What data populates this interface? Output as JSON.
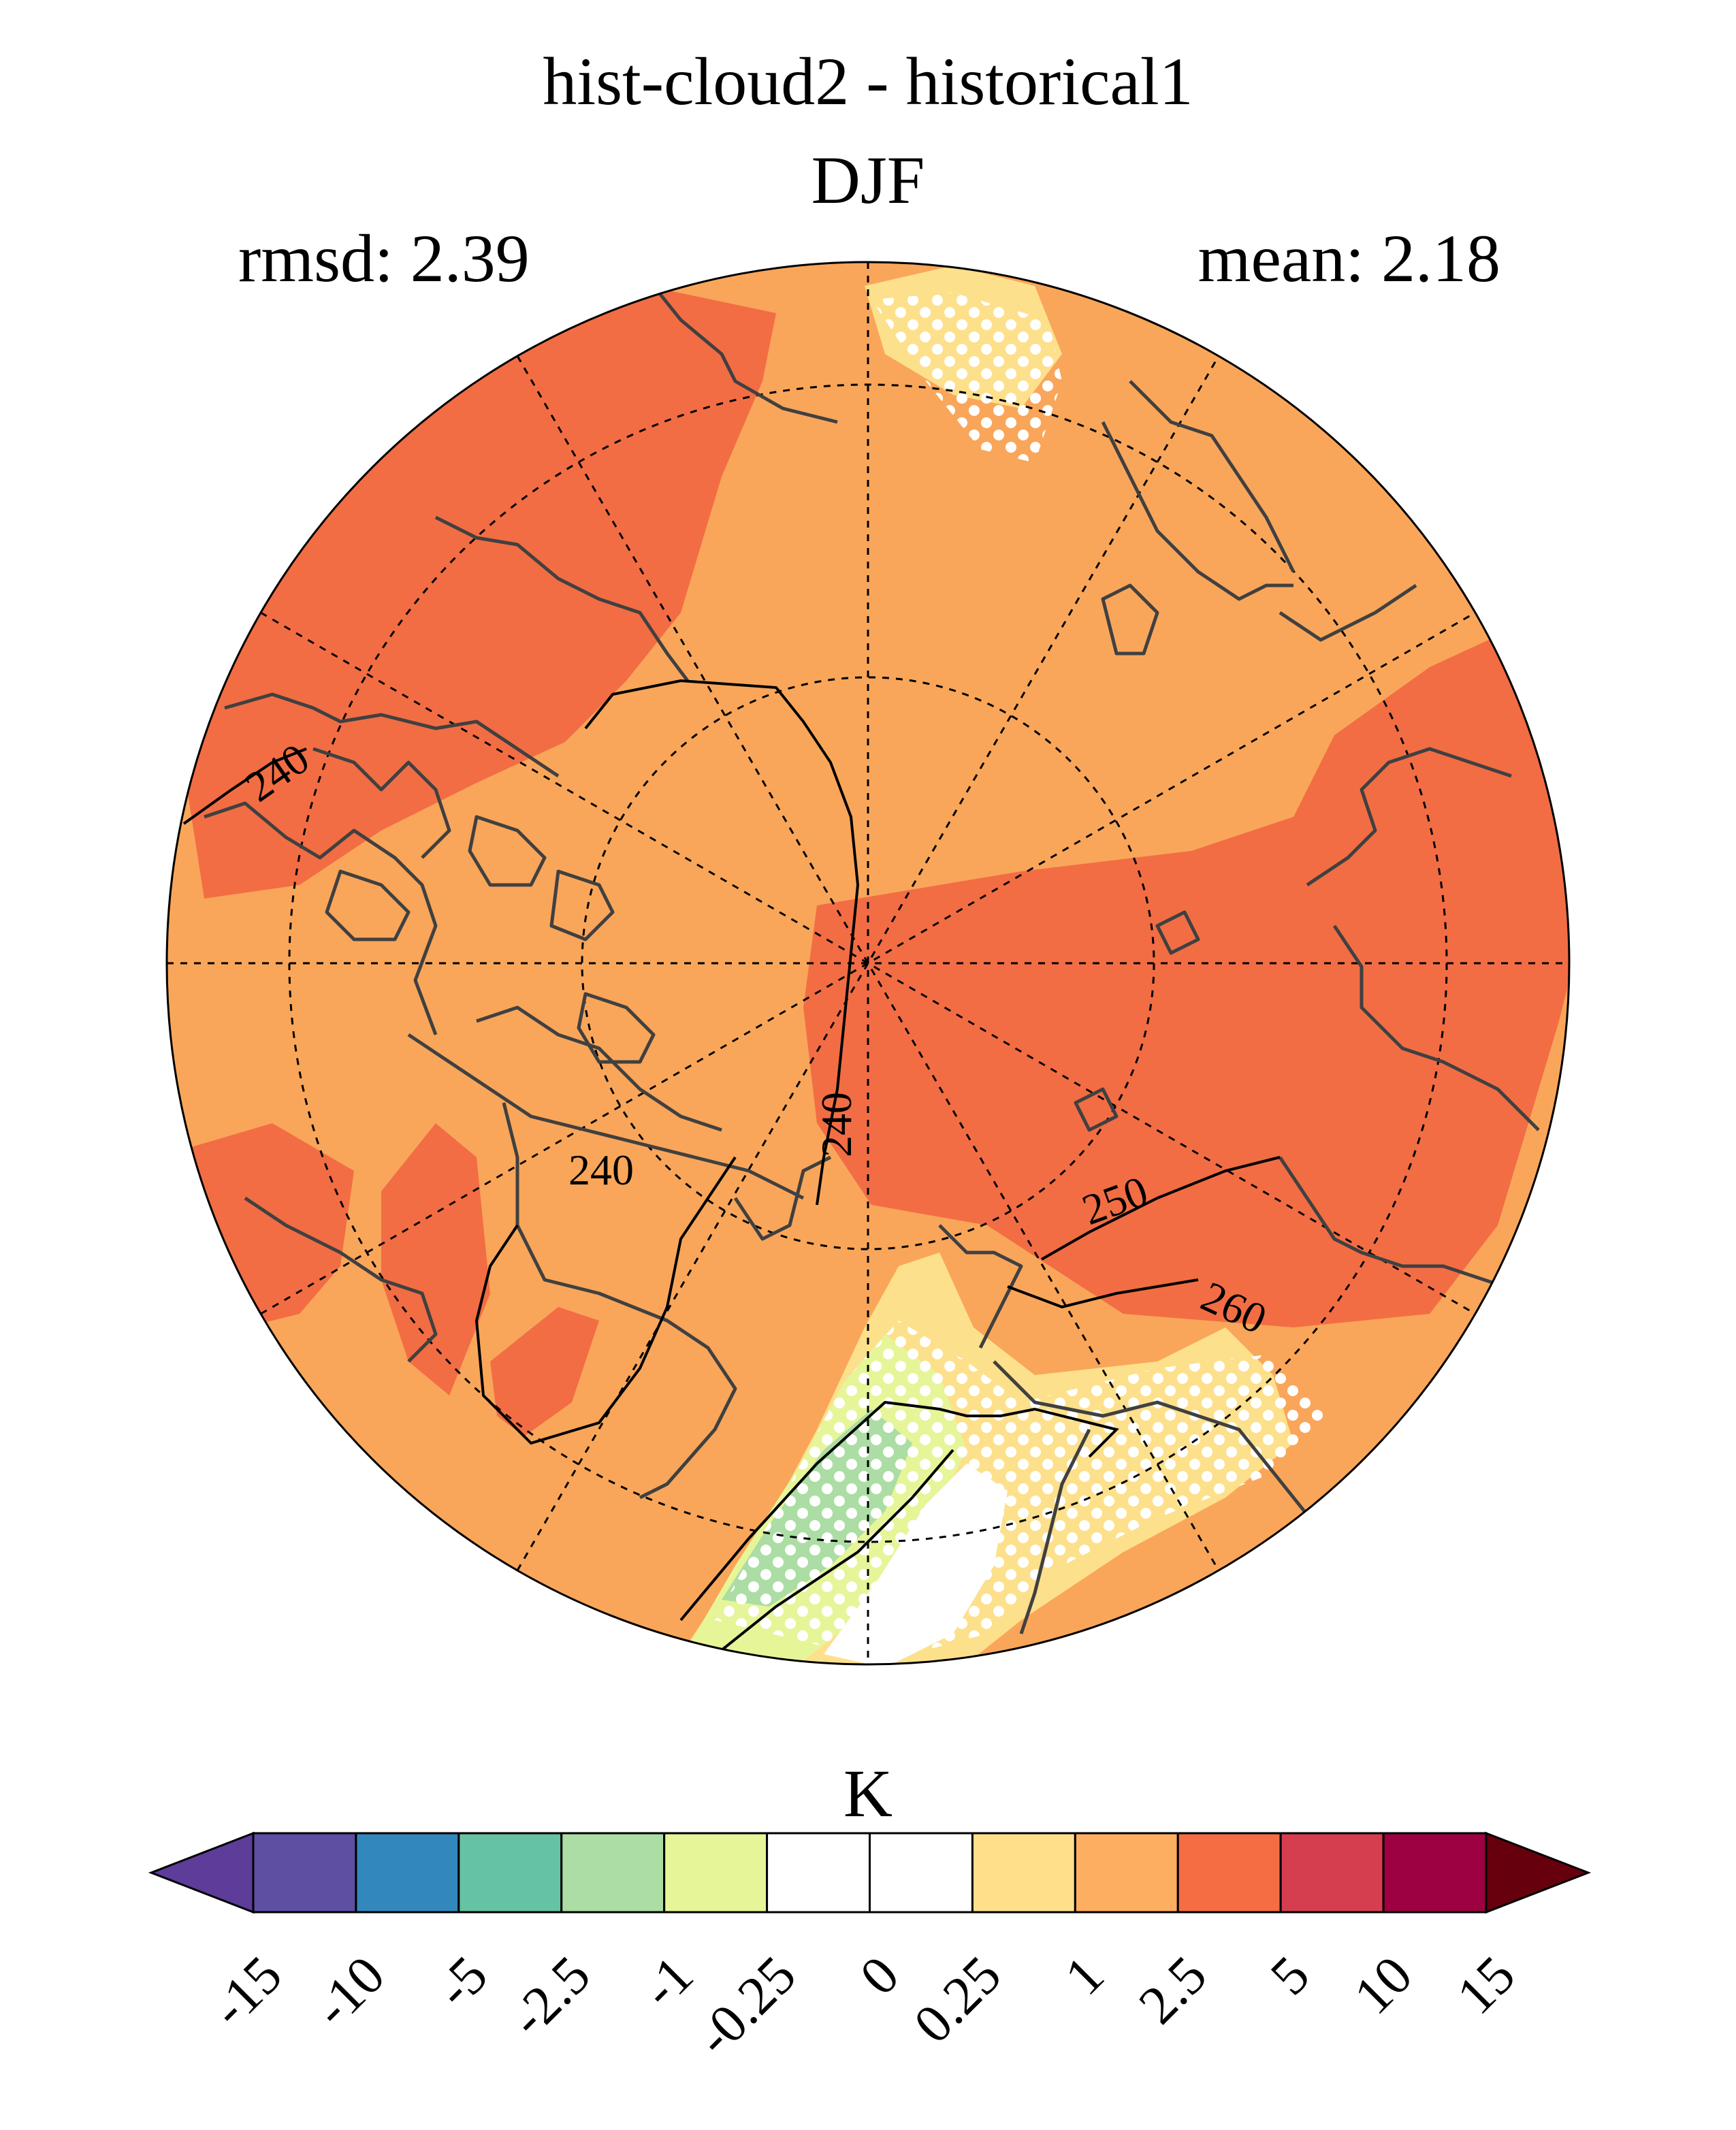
{
  "figure": {
    "title": "hist-cloud2 - historical1",
    "subtitle": "DJF",
    "rmsd_text": "rmsd: 2.39",
    "mean_text": "mean: 2.18"
  },
  "map": {
    "projection": "north-polar-stereographic",
    "fill_colors": {
      "dominant": "#f9a65a",
      "warm": "#f26d44",
      "light": "#fde08b",
      "pale_green": "#e6f598",
      "green": "#abdda4",
      "white": "#ffffff"
    },
    "contour_labels": [
      "240",
      "240",
      "240",
      "250",
      "260"
    ],
    "stippling": "white dots"
  },
  "colorbar": {
    "units": "K",
    "ticks": [
      "-15",
      "-10",
      "-5",
      "-2.5",
      "-1",
      "-0.25",
      "0",
      "0.25",
      "1",
      "2.5",
      "5",
      "10",
      "15"
    ],
    "colors": [
      "#5e3c99",
      "#5e4fa2",
      "#3288bd",
      "#66c2a5",
      "#abdda4",
      "#e6f598",
      "#ffffff",
      "#ffffff",
      "#fee08b",
      "#fdae61",
      "#f46d43",
      "#d53e4f",
      "#9e0142",
      "#67000d"
    ]
  }
}
